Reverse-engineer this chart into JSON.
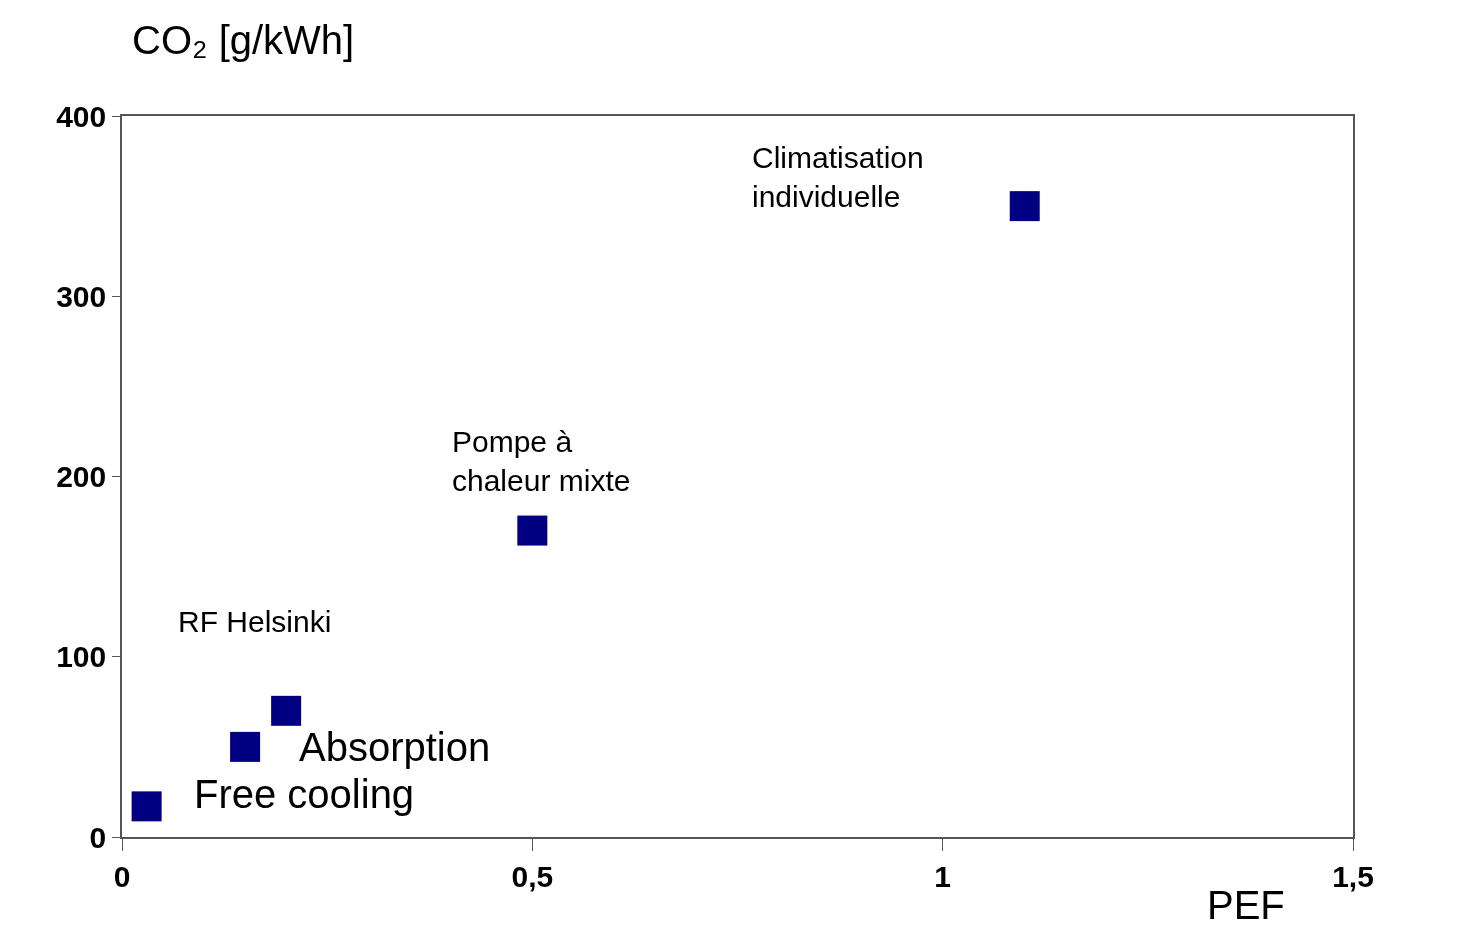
{
  "chart_data": {
    "type": "scatter",
    "ylabel": "CO₂ [g/kWh]",
    "xlabel": "PEF",
    "x": [
      0.03,
      0.15,
      0.2,
      0.5,
      1.1
    ],
    "values": [
      17,
      50,
      70,
      170,
      350
    ],
    "color": "#000080",
    "marker": "square",
    "xlim": [
      0,
      1.5
    ],
    "xticks": [
      0,
      {
        "value": 0.5,
        "label": "0,5"
      },
      1,
      {
        "value": 1.5,
        "label": "1,5"
      }
    ],
    "ylim": [
      0,
      400
    ],
    "yticks": [
      0,
      100,
      200,
      300,
      400
    ],
    "legend": false,
    "annotations": [
      {
        "text": "Free cooling",
        "x": 0.03,
        "y": 17
      },
      {
        "text": "Absorption",
        "x": 0.15,
        "y": 50
      },
      {
        "text": "RF Helsinki",
        "x": 0.2,
        "y": 70
      },
      {
        "text": "Pompe à\nchaleur mixte",
        "x": 0.5,
        "y": 170
      },
      "Climatisation\nindividuelle"
    ]
  }
}
